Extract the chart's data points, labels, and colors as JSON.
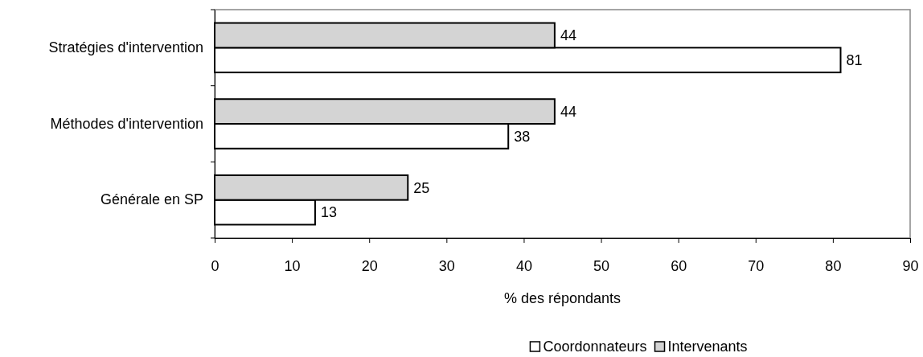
{
  "chart_data": {
    "type": "bar",
    "orientation": "horizontal",
    "xlabel": "% des répondants",
    "categories": [
      "Stratégies d'intervention",
      "Méthodes d'intervention",
      "Générale en SP"
    ],
    "series": [
      {
        "name": "Coordonnateurs",
        "color": "#ffffff",
        "values": [
          81,
          38,
          13
        ]
      },
      {
        "name": "Intervenants",
        "color": "#d4d4d4",
        "values": [
          44,
          44,
          25
        ]
      }
    ],
    "xlim": [
      0,
      90
    ],
    "xticks": [
      0,
      10,
      20,
      30,
      40,
      50,
      60,
      70,
      80,
      90
    ],
    "data_labels": true,
    "grid": false,
    "legend": "bottom"
  }
}
